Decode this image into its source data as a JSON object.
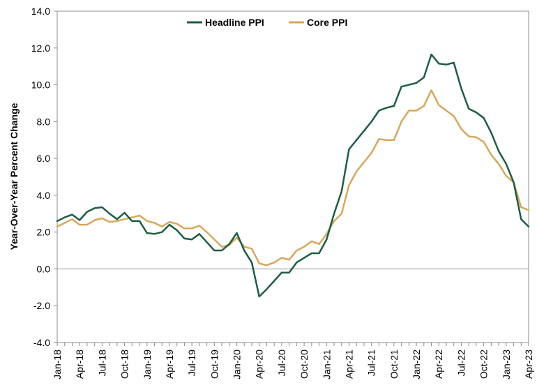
{
  "chart_data": {
    "type": "line",
    "title": "",
    "xlabel": "",
    "ylabel": "Year-Over-Year Percent Change",
    "ylim": [
      -4.0,
      14.0
    ],
    "yticks": [
      "-4.0",
      "-2.0",
      "0.0",
      "2.0",
      "4.0",
      "6.0",
      "8.0",
      "10.0",
      "12.0",
      "14.0"
    ],
    "xticks": [
      "Jan-18",
      "Apr-18",
      "Jul-18",
      "Oct-18",
      "Jan-19",
      "Apr-19",
      "Jul-19",
      "Oct-19",
      "Jan-20",
      "Apr-20",
      "Jul-20",
      "Oct-20",
      "Jan-21",
      "Apr-21",
      "Jul-21",
      "Oct-21",
      "Jan-22",
      "Apr-22",
      "Jul-22",
      "Oct-22",
      "Jan-23",
      "Apr-23"
    ],
    "grid": false,
    "legend_position": "top-center",
    "colors": {
      "headline": "#1b5e40",
      "core": "#d6a85b"
    },
    "series": [
      {
        "name": "Headline PPI",
        "values": [
          2.6,
          2.8,
          2.95,
          2.65,
          3.1,
          3.3,
          3.35,
          3.0,
          2.7,
          3.05,
          2.6,
          2.6,
          1.95,
          1.9,
          2.0,
          2.4,
          2.1,
          1.65,
          1.6,
          1.9,
          1.45,
          1.0,
          1.0,
          1.35,
          1.95,
          1.0,
          0.35,
          -1.5,
          -1.1,
          -0.65,
          -0.2,
          -0.2,
          0.35,
          0.6,
          0.85,
          0.85,
          1.6,
          3.0,
          4.2,
          6.5,
          7.0,
          7.5,
          8.0,
          8.6,
          8.75,
          8.85,
          9.9,
          10.0,
          10.1,
          10.4,
          11.65,
          11.15,
          11.1,
          11.2,
          9.8,
          8.7,
          8.5,
          8.2,
          7.4,
          6.4,
          5.7,
          4.7,
          2.7,
          2.3
        ]
      },
      {
        "name": "Core PPI",
        "values": [
          2.3,
          2.5,
          2.7,
          2.4,
          2.4,
          2.65,
          2.75,
          2.55,
          2.6,
          2.7,
          2.8,
          2.9,
          2.6,
          2.5,
          2.3,
          2.55,
          2.45,
          2.2,
          2.2,
          2.35,
          2.0,
          1.6,
          1.2,
          1.3,
          1.7,
          1.2,
          1.1,
          0.3,
          0.2,
          0.35,
          0.6,
          0.5,
          1.0,
          1.2,
          1.5,
          1.35,
          1.9,
          2.6,
          3.0,
          4.55,
          5.3,
          5.8,
          6.3,
          7.05,
          7.0,
          7.0,
          8.0,
          8.6,
          8.6,
          8.85,
          9.7,
          8.9,
          8.6,
          8.3,
          7.6,
          7.2,
          7.15,
          6.9,
          6.2,
          5.7,
          5.05,
          4.7,
          3.35,
          3.2
        ]
      }
    ]
  }
}
